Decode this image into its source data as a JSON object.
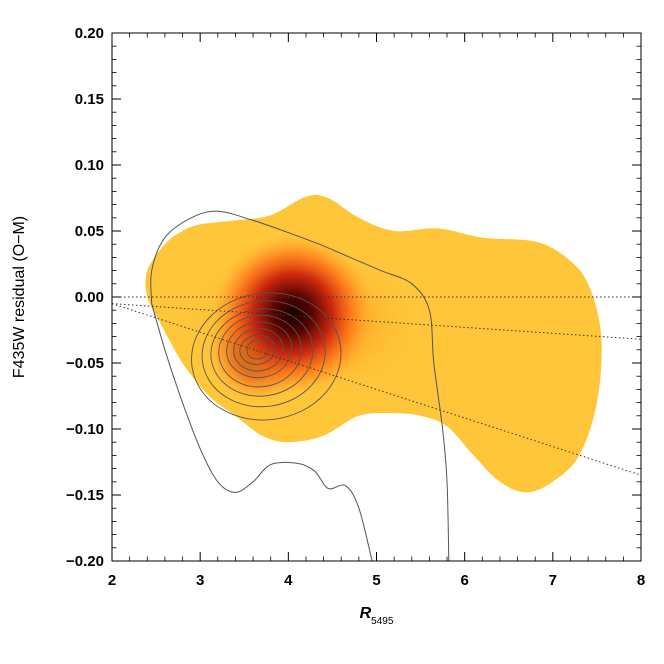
{
  "chart_data": {
    "type": "heatmap",
    "title": "",
    "xlabel": "R",
    "xlabel_subscript": "5495",
    "ylabel": "F435W residual (O−M)",
    "xlim": [
      2,
      8
    ],
    "ylim": [
      -0.2,
      0.2
    ],
    "x_ticks": [
      2,
      3,
      4,
      5,
      6,
      7,
      8
    ],
    "x_tick_labels": [
      "2",
      "3",
      "4",
      "5",
      "6",
      "7",
      "8"
    ],
    "y_ticks": [
      -0.2,
      -0.15,
      -0.1,
      -0.05,
      0.0,
      0.05,
      0.1,
      0.15,
      0.2
    ],
    "y_tick_labels": [
      "−0.20",
      "−0.15",
      "−0.10",
      "−0.05",
      "0.00",
      "0.05",
      "0.10",
      "0.15",
      "0.20"
    ],
    "grid": false,
    "colors": {
      "outer": "#ffc63a",
      "mid": "#ff8c1a",
      "inner": "#c8200c",
      "core": "#150000",
      "contour": "#555555",
      "reference": "#333333"
    },
    "density_region": [
      [
        2.4,
        0.02
      ],
      [
        2.6,
        0.04
      ],
      [
        2.8,
        0.05
      ],
      [
        3.0,
        0.055
      ],
      [
        3.4,
        0.058
      ],
      [
        3.8,
        0.062
      ],
      [
        4.2,
        0.076
      ],
      [
        4.45,
        0.075
      ],
      [
        4.8,
        0.06
      ],
      [
        5.2,
        0.05
      ],
      [
        5.7,
        0.052
      ],
      [
        6.2,
        0.045
      ],
      [
        6.8,
        0.042
      ],
      [
        7.15,
        0.03
      ],
      [
        7.4,
        0.01
      ],
      [
        7.55,
        -0.03
      ],
      [
        7.5,
        -0.08
      ],
      [
        7.3,
        -0.12
      ],
      [
        7.0,
        -0.14
      ],
      [
        6.7,
        -0.148
      ],
      [
        6.4,
        -0.14
      ],
      [
        6.1,
        -0.12
      ],
      [
        5.8,
        -0.098
      ],
      [
        5.5,
        -0.09
      ],
      [
        5.2,
        -0.088
      ],
      [
        4.8,
        -0.09
      ],
      [
        4.4,
        -0.105
      ],
      [
        4.0,
        -0.11
      ],
      [
        3.7,
        -0.105
      ],
      [
        3.4,
        -0.09
      ],
      [
        3.1,
        -0.075
      ],
      [
        2.8,
        -0.05
      ],
      [
        2.55,
        -0.02
      ],
      [
        2.4,
        0.0
      ]
    ],
    "density_peaks": [
      {
        "x": 4.05,
        "y": -0.013,
        "weight": 1.0
      },
      {
        "x": 3.65,
        "y": -0.04,
        "weight": 0.55
      }
    ],
    "outer_contour": [
      [
        2.45,
        -0.005
      ],
      [
        2.45,
        0.02
      ],
      [
        2.6,
        0.045
      ],
      [
        2.9,
        0.06
      ],
      [
        3.2,
        0.065
      ],
      [
        3.6,
        0.058
      ],
      [
        3.95,
        0.05
      ],
      [
        4.35,
        0.04
      ],
      [
        4.7,
        0.03
      ],
      [
        5.05,
        0.02
      ],
      [
        5.4,
        0.01
      ],
      [
        5.6,
        -0.01
      ],
      [
        5.65,
        -0.05
      ],
      [
        5.75,
        -0.1
      ],
      [
        5.8,
        -0.14
      ],
      [
        5.82,
        -0.2
      ]
    ],
    "lower_contour": [
      [
        2.45,
        -0.005
      ],
      [
        2.6,
        -0.04
      ],
      [
        2.8,
        -0.08
      ],
      [
        3.0,
        -0.115
      ],
      [
        3.2,
        -0.14
      ],
      [
        3.4,
        -0.148
      ],
      [
        3.6,
        -0.14
      ],
      [
        3.8,
        -0.127
      ],
      [
        4.1,
        -0.126
      ],
      [
        4.3,
        -0.132
      ],
      [
        4.45,
        -0.145
      ],
      [
        4.65,
        -0.143
      ],
      [
        4.8,
        -0.16
      ],
      [
        4.95,
        -0.2
      ]
    ],
    "contour_rings": [
      {
        "cx": 3.75,
        "cy": -0.045,
        "rx": 0.85,
        "ry": 0.048
      },
      {
        "cx": 3.72,
        "cy": -0.043,
        "rx": 0.7,
        "ry": 0.04
      },
      {
        "cx": 3.7,
        "cy": -0.042,
        "rx": 0.58,
        "ry": 0.033
      },
      {
        "cx": 3.68,
        "cy": -0.041,
        "rx": 0.47,
        "ry": 0.027
      },
      {
        "cx": 3.67,
        "cy": -0.04,
        "rx": 0.37,
        "ry": 0.021
      },
      {
        "cx": 3.66,
        "cy": -0.04,
        "rx": 0.28,
        "ry": 0.016
      },
      {
        "cx": 3.65,
        "cy": -0.04,
        "rx": 0.2,
        "ry": 0.011
      },
      {
        "cx": 3.65,
        "cy": -0.04,
        "rx": 0.12,
        "ry": 0.007
      }
    ],
    "reference_lines": [
      {
        "x": [
          2,
          8
        ],
        "y": [
          0.0,
          0.0
        ]
      },
      {
        "x": [
          2,
          8
        ],
        "y": [
          -0.005,
          -0.032
        ]
      },
      {
        "x": [
          2,
          8
        ],
        "y": [
          -0.005,
          -0.135
        ]
      }
    ]
  }
}
